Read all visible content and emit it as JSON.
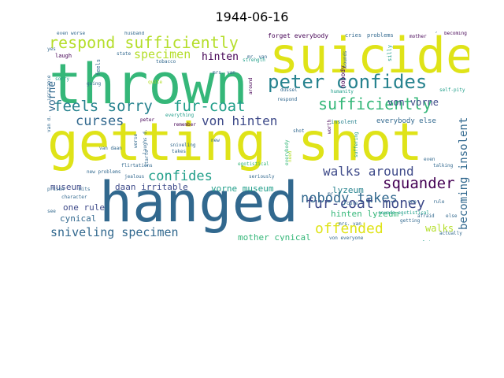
{
  "title": "1944-06-16",
  "palette": {
    "dark_purple": "#440154",
    "indigo": "#3e4a89",
    "blue": "#31688e",
    "teal": "#26828e",
    "green_teal": "#1f9e89",
    "green": "#35b779",
    "light_green": "#6ece58",
    "yellow_green": "#b5de2b",
    "yellow": "#dfe318"
  },
  "words": {
    "hanged": "hanged",
    "getting_shot": "getting shot",
    "thrown": "thrown",
    "suicide": "suicide",
    "peter_confides": "peter confides",
    "respond_sufficiently": "respond sufficiently",
    "sufficiently": "sufficiently",
    "feels_sorry": "feels sorry",
    "fur_coat": "fur-coat",
    "curses": "curses",
    "von_hinten": "von hinten",
    "nobody_takes": "nobody takes",
    "confides": "confides",
    "specimen": "specimen",
    "hinten": "hinten",
    "walks_around": "walks around",
    "squander": "squander",
    "fur_coat_money": "fur-coat money",
    "offended": "offended",
    "sniveling_specimen": "sniveling specimen",
    "museum": "museum",
    "daan_irritable": "daan irritable",
    "vorne_museum": "vorne museum",
    "lyzeum": "lyzeum",
    "hinten_lyzeum": "hinten lyzeum",
    "one_rule": "one rule",
    "cynical": "cynical",
    "mother_cynical": "mother cynical",
    "walks": "walks",
    "becoming_insolent": "becoming insolent",
    "von_vorne": "von vorne",
    "vorne": "vorne",
    "insolent": "insolent",
    "everybody_else": "everybody else",
    "forget_everybody": "forget everybody",
    "cries": "cries",
    "problems": "problems",
    "even_worse": "even worse",
    "husband": "husband",
    "laugh": "laugh",
    "feels": "feels",
    "state": "state",
    "tobacco": "tobacco",
    "strength": "strength",
    "money": "money",
    "mother": "mother",
    "becoming": "becoming",
    "yes": "yes",
    "sorry": "sorry",
    "going": "going",
    "irritable": "irritable",
    "quite": "quite",
    "peter": "peter",
    "remember": "remember",
    "respond": "respond",
    "mrs_van": "mrs. van",
    "around": "around",
    "dussel": "dussel",
    "humanity": "humanity",
    "self_pity": "self-pity",
    "silly": "silly",
    "sounds": "sounds",
    "nobody": "nobody",
    "van_daan": "van daan",
    "worse": "worse",
    "laughs_d": "laughs d.",
    "sniveling": "sniveling",
    "takes": "takes",
    "everything": "everything",
    "new": "new",
    "shot": "shot",
    "egotistical": "egotistical",
    "seriously": "seriously",
    "need": "need",
    "even": "even",
    "talking": "talking",
    "flirtations": "flirtations",
    "starts": "starts",
    "new_problems": "new problems",
    "jealous": "jealous",
    "prison": "prison",
    "character": "character",
    "mits": "mits",
    "van_d": "van d.",
    "see": "see",
    "afraid": "afraid",
    "else": "else",
    "getting": "getting",
    "one": "one",
    "rule": "rule",
    "sounds_egotistical": "sounds egotistical",
    "complains": "complains",
    "actually": "actually",
    "von_everyone": "von everyone",
    "cure": "cure",
    "mr": "mr.",
    "mrs_van_2": "mrs. van",
    "worth": "worth",
    "suffering": "suffering",
    "everybody": "everybody",
    "mr_van": "mr. van"
  }
}
